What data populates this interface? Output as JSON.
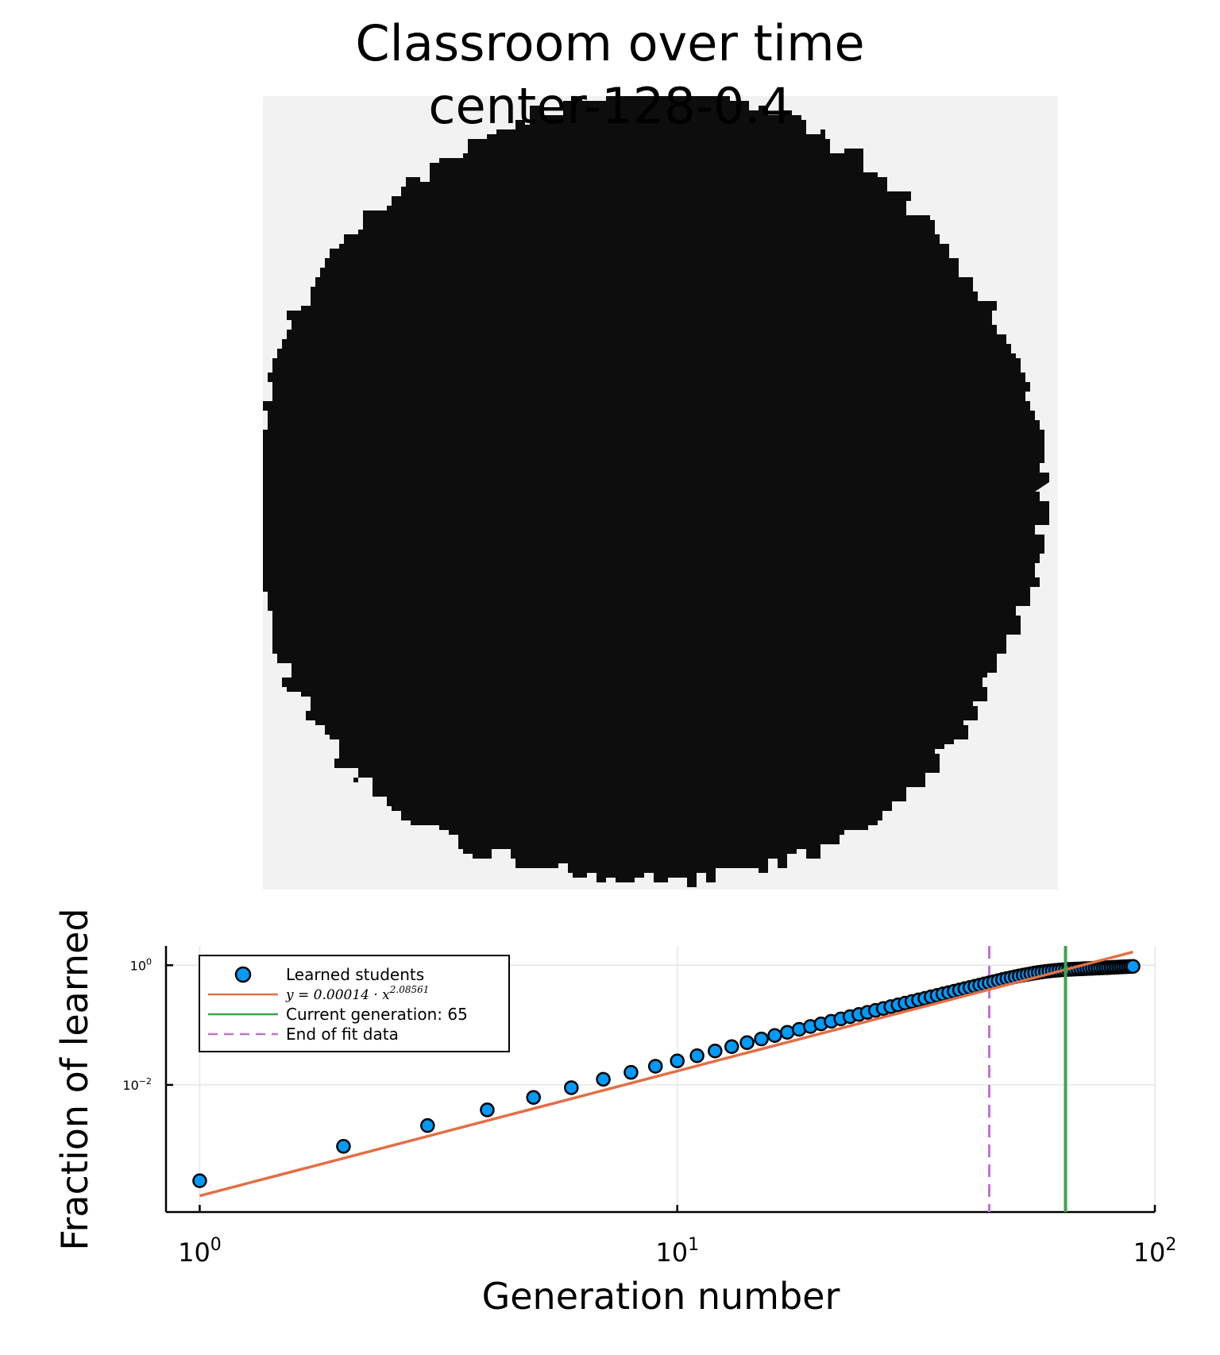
{
  "figure": {
    "title_line1": "Classroom over time",
    "title_line2": "center-128-0.4"
  },
  "heatmap": {
    "background_color": "#f2f2f2",
    "filled_color": "#0d0d0d",
    "shape": "irregular roughly circular filled region (learned cells)"
  },
  "chart_data": {
    "type": "scatter",
    "xlabel": "Generation number",
    "ylabel": "Fraction of learned",
    "xscale": "log",
    "yscale": "log",
    "xlim": [
      0.85,
      100
    ],
    "ylim": [
      7.5e-05,
      2.1
    ],
    "xticks": [
      1,
      10,
      100
    ],
    "xtick_labels": [
      {
        "base": "10",
        "exp": "0"
      },
      {
        "base": "10",
        "exp": "1"
      },
      {
        "base": "10",
        "exp": "2"
      }
    ],
    "yticks": [
      0.01,
      1
    ],
    "ytick_labels": [
      {
        "base": "10",
        "exp": "−2"
      },
      {
        "base": "10",
        "exp": "0"
      }
    ],
    "grid": true,
    "legend_position": "top-left",
    "series": [
      {
        "name": "Learned students",
        "kind": "scatter",
        "color": "#009af9",
        "x": [
          1,
          2,
          3,
          4,
          5,
          6,
          7,
          8,
          9,
          10,
          11,
          12,
          13,
          14,
          15,
          16,
          17,
          18,
          19,
          20,
          21,
          22,
          23,
          24,
          25,
          26,
          27,
          28,
          29,
          30,
          31,
          32,
          33,
          34,
          35,
          36,
          37,
          38,
          39,
          40,
          41,
          42,
          43,
          44,
          45,
          46,
          47,
          48,
          49,
          50,
          51,
          52,
          53,
          54,
          55,
          56,
          57,
          58,
          59,
          60,
          61,
          62,
          63,
          64,
          65,
          66,
          67,
          68,
          69,
          70,
          71,
          72,
          73,
          74,
          75,
          76,
          77,
          78,
          79,
          80,
          81,
          82,
          83,
          84,
          85,
          86,
          87,
          88,
          89,
          90
        ],
        "y": [
          0.00025,
          0.00094,
          0.00209,
          0.00382,
          0.00617,
          0.00898,
          0.0124,
          0.0162,
          0.0205,
          0.0252,
          0.0307,
          0.0369,
          0.0436,
          0.0509,
          0.0586,
          0.0669,
          0.0757,
          0.0849,
          0.0946,
          0.1048,
          0.1155,
          0.1266,
          0.1382,
          0.1503,
          0.1628,
          0.1758,
          0.1893,
          0.2032,
          0.2176,
          0.2324,
          0.2477,
          0.2635,
          0.2797,
          0.2964,
          0.3135,
          0.3311,
          0.3491,
          0.3676,
          0.3865,
          0.4059,
          0.4257,
          0.446,
          0.4667,
          0.4879,
          0.5095,
          0.5316,
          0.5541,
          0.577,
          0.5988,
          0.6204,
          0.6416,
          0.6623,
          0.6825,
          0.7021,
          0.7209,
          0.7389,
          0.7559,
          0.7717,
          0.7863,
          0.7995,
          0.8113,
          0.8217,
          0.8308,
          0.8386,
          0.8453,
          0.8511,
          0.8563,
          0.861,
          0.8656,
          0.87,
          0.8744,
          0.8788,
          0.8832,
          0.8876,
          0.8921,
          0.8966,
          0.9011,
          0.9056,
          0.9101,
          0.9146,
          0.919,
          0.9234,
          0.9277,
          0.932,
          0.9363,
          0.9405,
          0.9446,
          0.9487,
          0.9527,
          0.9566
        ]
      },
      {
        "name": "y = 0.00014 · x^{2.08561}",
        "label_parts": {
          "prefix": "y = 0.00014 · x",
          "exp": "2.08561"
        },
        "kind": "fit",
        "color": "#e26f46",
        "coef": 0.00014,
        "power": 2.08561,
        "x_range": [
          1,
          90
        ]
      },
      {
        "name": "Current generation: 65",
        "kind": "vline",
        "color": "#3da44d",
        "x": 65
      },
      {
        "name": "End of fit data",
        "kind": "vline-dashed",
        "color": "#c271d2",
        "x": 45
      }
    ]
  }
}
